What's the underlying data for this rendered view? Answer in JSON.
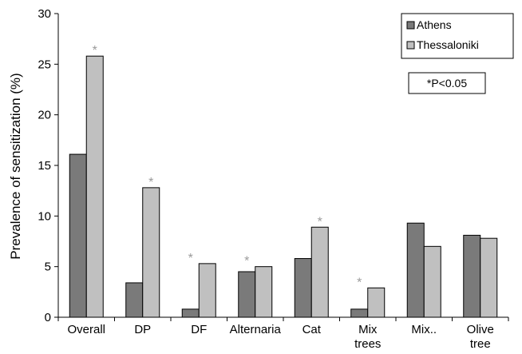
{
  "chart_data": {
    "type": "bar",
    "title": "",
    "xlabel": "",
    "ylabel": "Prevalence of sensitization (%)",
    "ylim": [
      0,
      30
    ],
    "yticks": [
      0,
      5,
      10,
      15,
      20,
      25,
      30
    ],
    "categories": [
      {
        "label": [
          "Overall"
        ]
      },
      {
        "label": [
          "DP"
        ]
      },
      {
        "label": [
          "DF"
        ]
      },
      {
        "label": [
          "Alternaria"
        ]
      },
      {
        "label": [
          "Cat"
        ]
      },
      {
        "label": [
          "Mix",
          "trees"
        ]
      },
      {
        "label": [
          "Mix.."
        ]
      },
      {
        "label": [
          "Olive",
          "tree"
        ]
      }
    ],
    "series": [
      {
        "name": "Athens",
        "color": "#7a7a7a",
        "values": [
          16.1,
          3.4,
          0.8,
          4.5,
          5.8,
          0.8,
          9.3,
          8.1
        ]
      },
      {
        "name": "Thessaloniki",
        "color": "#c0c0c0",
        "values": [
          25.8,
          12.8,
          5.3,
          5.0,
          8.9,
          2.9,
          7.0,
          7.8
        ]
      }
    ],
    "significance": [
      {
        "category": 0,
        "position": "thessaloniki",
        "symbol": "*"
      },
      {
        "category": 1,
        "position": "thessaloniki",
        "symbol": "*"
      },
      {
        "category": 2,
        "position": "athens",
        "symbol": "*"
      },
      {
        "category": 3,
        "position": "athens",
        "symbol": "*"
      },
      {
        "category": 4,
        "position": "thessaloniki",
        "symbol": "*"
      },
      {
        "category": 5,
        "position": "athens",
        "symbol": "*"
      }
    ],
    "legend": {
      "placement": "top-right"
    },
    "annotation": "*P<0.05",
    "grid": false
  }
}
